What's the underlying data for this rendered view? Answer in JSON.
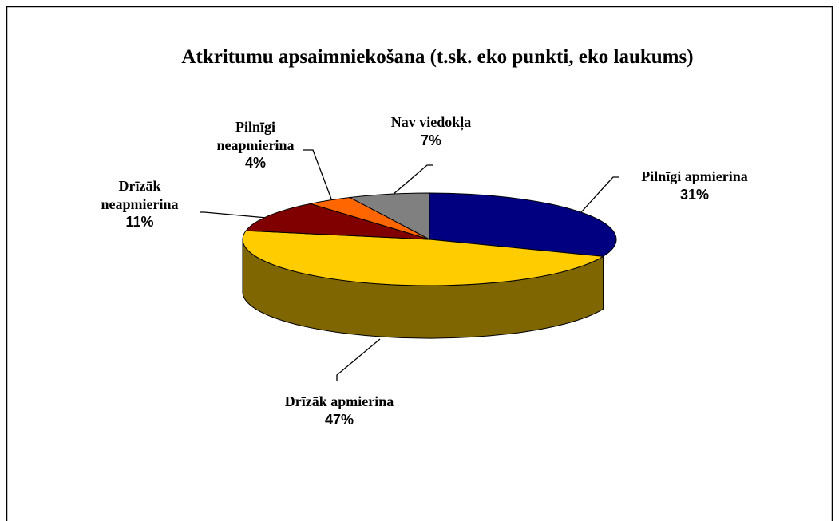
{
  "chart_data": {
    "type": "pie3d",
    "title": "Atkritumu apsaimniekošana (t.sk. eko punkti, eko laukums)",
    "categories": [
      "Pilnīgi apmierina",
      "Drīzāk apmierina",
      "Drīzāk neapmierina",
      "Pilnīgi neapmierina",
      "Nav viedokļa"
    ],
    "values": [
      31,
      47,
      11,
      4,
      7
    ],
    "value_labels": [
      "31%",
      "47%",
      "11%",
      "4%",
      "7%"
    ],
    "colors": [
      "#000080",
      "#ffcc00",
      "#800000",
      "#ff6600",
      "#808080"
    ]
  }
}
